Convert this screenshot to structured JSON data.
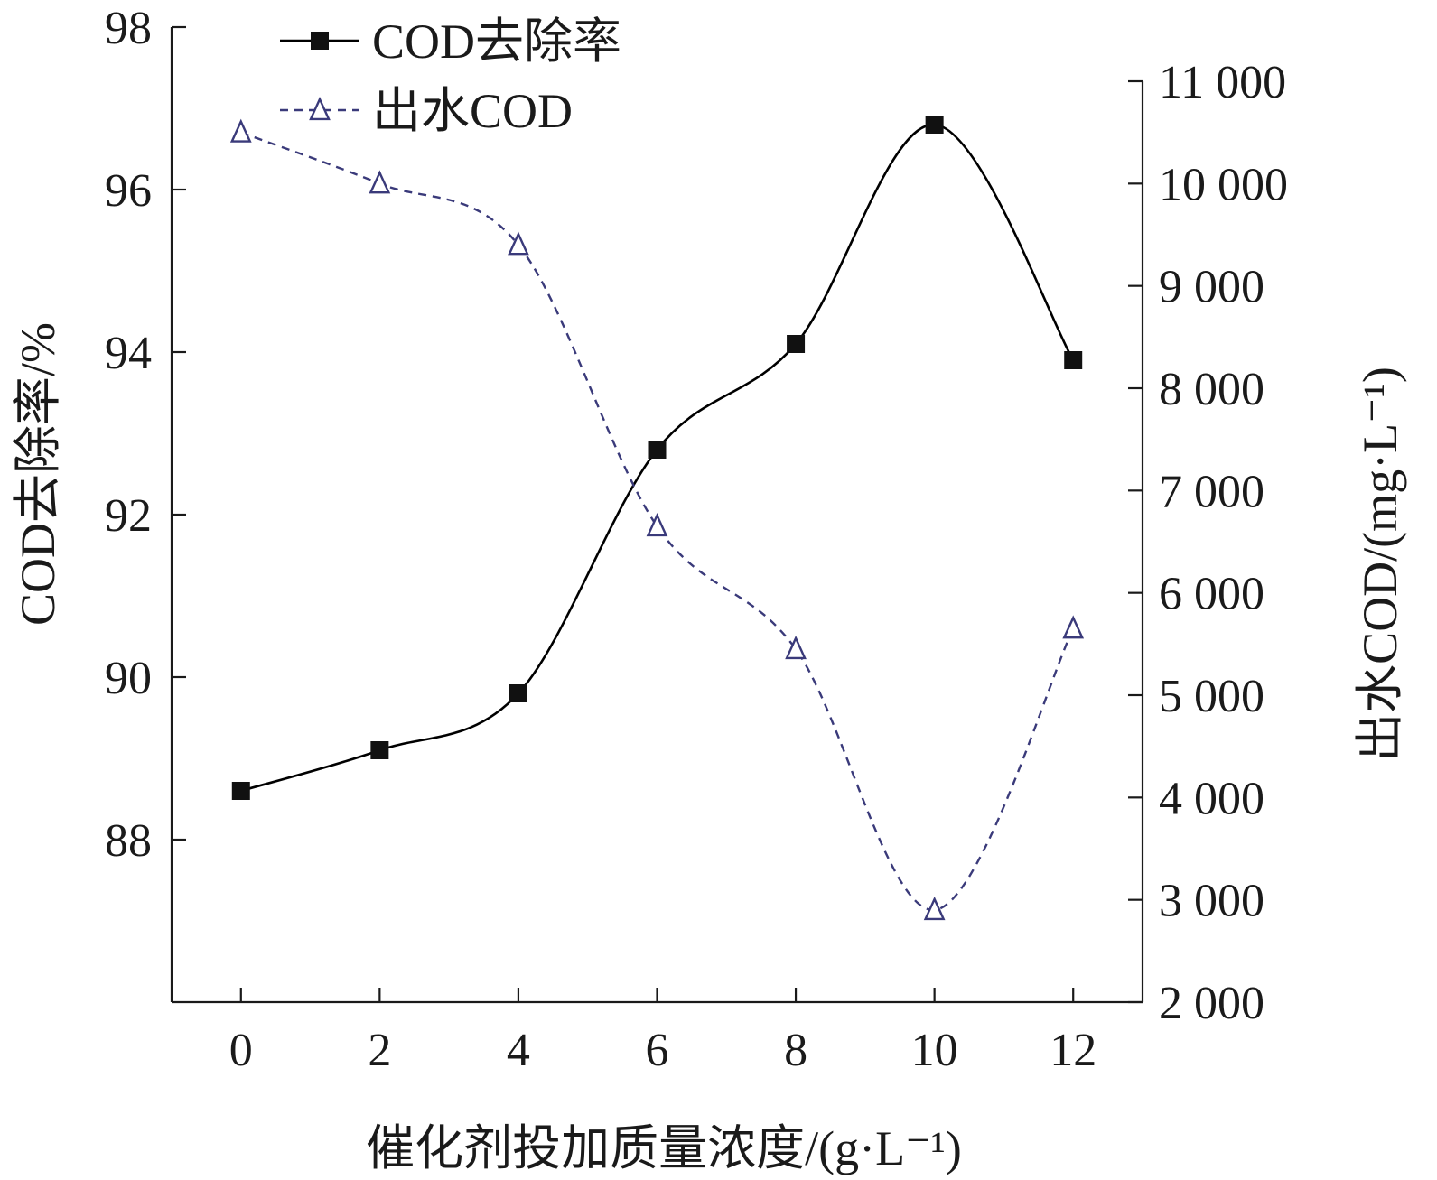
{
  "chart_data": {
    "type": "line",
    "x_values": [
      0,
      2,
      4,
      6,
      8,
      10,
      12
    ],
    "x_tick_labels": [
      "0",
      "2",
      "4",
      "6",
      "8",
      "10",
      "12"
    ],
    "xlabel": "催化剂投加质量浓度/(g·L⁻¹)",
    "xlim": [
      -1,
      13
    ],
    "y_left": {
      "label": "COD去除率/%",
      "lim": [
        86.0,
        98.0
      ],
      "ticks": [
        88,
        90,
        92,
        94,
        96,
        98
      ],
      "tick_labels": [
        "88",
        "90",
        "92",
        "94",
        "96",
        "98"
      ]
    },
    "y_right": {
      "label": "出水COD/(mg·L⁻¹)",
      "lim": [
        2000,
        11000
      ],
      "ticks": [
        2000,
        3000,
        4000,
        5000,
        6000,
        7000,
        8000,
        9000,
        10000,
        11000
      ],
      "tick_labels": [
        "2 000",
        "3 000",
        "4 000",
        "5 000",
        "6 000",
        "7 000",
        "8 000",
        "9 000",
        "10 000",
        "11 000"
      ]
    },
    "series": [
      {
        "name": "COD去除率",
        "axis": "left",
        "marker": "filled-square",
        "line_style": "solid",
        "color": "#000000",
        "values": [
          88.6,
          89.1,
          89.8,
          92.8,
          94.1,
          96.8,
          93.9
        ]
      },
      {
        "name": "出水COD",
        "axis": "right",
        "marker": "open-triangle",
        "line_style": "dashed",
        "color": "#3a3a7a",
        "values": [
          10500,
          10000,
          9400,
          6650,
          5450,
          2900,
          5650
        ]
      }
    ],
    "legend_position": "top-left-inside",
    "grid": false
  }
}
